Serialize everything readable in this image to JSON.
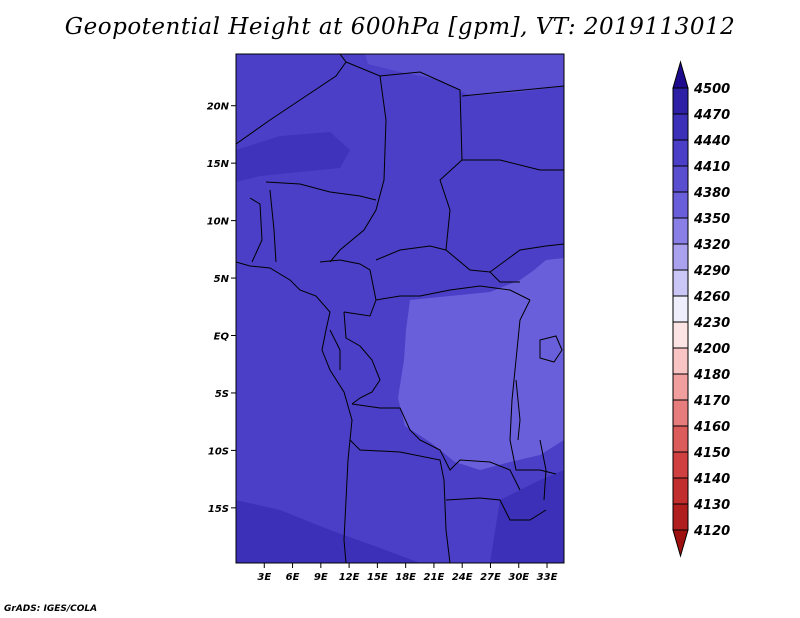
{
  "title": "Geopotential Height at 600hPa [gpm], VT: 2019113012",
  "credit": "GrADS: IGES/COLA",
  "map": {
    "lat_ticks": [
      "20N",
      "15N",
      "10N",
      "5N",
      "EQ",
      "5S",
      "10S",
      "15S"
    ],
    "lat_values": [
      20,
      15,
      10,
      5,
      0,
      -5,
      -10,
      -15
    ],
    "lon_ticks": [
      "3E",
      "6E",
      "9E",
      "12E",
      "15E",
      "18E",
      "21E",
      "24E",
      "27E",
      "30E",
      "33E"
    ],
    "lon_values": [
      3,
      6,
      9,
      12,
      15,
      18,
      21,
      24,
      27,
      30,
      33
    ],
    "lat_range": [
      -19.8,
      24.5
    ],
    "lon_range": [
      0,
      34.8
    ]
  },
  "colorbar": {
    "levels": [
      "4500",
      "4470",
      "4440",
      "4410",
      "4380",
      "4350",
      "4320",
      "4290",
      "4260",
      "4230",
      "4200",
      "4180",
      "4170",
      "4160",
      "4150",
      "4140",
      "4130",
      "4120"
    ],
    "colors": [
      "#1e0a8c",
      "#2d1fa6",
      "#3c30b8",
      "#4a3fc6",
      "#5a4ed0",
      "#6a5fda",
      "#8a7fe6",
      "#aaa2ee",
      "#cac6f5",
      "#eeeefc",
      "#fde4e4",
      "#f8c4c4",
      "#f09e9e",
      "#e67c7c",
      "#dc5c5c",
      "#d04040",
      "#c22e2e",
      "#b01e1e",
      "#9e1010"
    ],
    "fill_colors": {
      "c4410": "#4a3fc6",
      "c4380": "#5a4ed0",
      "c4350": "#6a5fda",
      "c4440": "#3c30b8"
    }
  }
}
